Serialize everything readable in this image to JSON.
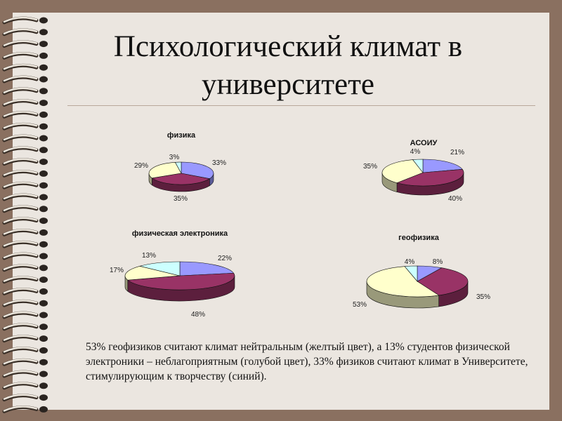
{
  "slide": {
    "title_line1": "Психологический климат в",
    "title_line2": "университете",
    "note": "53% геофизиков считают климат нейтральным (желтый цвет),  а  13% студентов физической электроники – неблагоприятным (голубой цвет), 33% физиков считают климат в Университете, стимулирующим к творчеству (синий).",
    "colors": {
      "blue": "#9999ff",
      "maroon": "#993366",
      "yellow": "#ffffcc",
      "cyan": "#ccffff"
    }
  },
  "chart_data": [
    {
      "type": "pie",
      "title": "физика",
      "slices": [
        {
          "value": 33,
          "label": "33%",
          "color": "#9999ff"
        },
        {
          "value": 35,
          "label": "35%",
          "color": "#993366"
        },
        {
          "value": 29,
          "label": "29%",
          "color": "#ffffcc"
        },
        {
          "value": 3,
          "label": "3%",
          "color": "#ccffff"
        }
      ]
    },
    {
      "type": "pie",
      "title": "АСОИУ",
      "slices": [
        {
          "value": 21,
          "label": "21%",
          "color": "#9999ff"
        },
        {
          "value": 40,
          "label": "40%",
          "color": "#993366"
        },
        {
          "value": 35,
          "label": "35%",
          "color": "#ffffcc"
        },
        {
          "value": 4,
          "label": "4%",
          "color": "#ccffff"
        }
      ]
    },
    {
      "type": "pie",
      "title": "физическая электроника",
      "slices": [
        {
          "value": 22,
          "label": "22%",
          "color": "#9999ff"
        },
        {
          "value": 48,
          "label": "48%",
          "color": "#993366"
        },
        {
          "value": 17,
          "label": "17%",
          "color": "#ffffcc"
        },
        {
          "value": 13,
          "label": "13%",
          "color": "#ccffff"
        }
      ]
    },
    {
      "type": "pie",
      "title": "геофизика",
      "slices": [
        {
          "value": 8,
          "label": "8%",
          "color": "#9999ff"
        },
        {
          "value": 35,
          "label": "35%",
          "color": "#993366"
        },
        {
          "value": 53,
          "label": "53%",
          "color": "#ffffcc"
        },
        {
          "value": 4,
          "label": "4%",
          "color": "#ccffff"
        }
      ]
    }
  ]
}
